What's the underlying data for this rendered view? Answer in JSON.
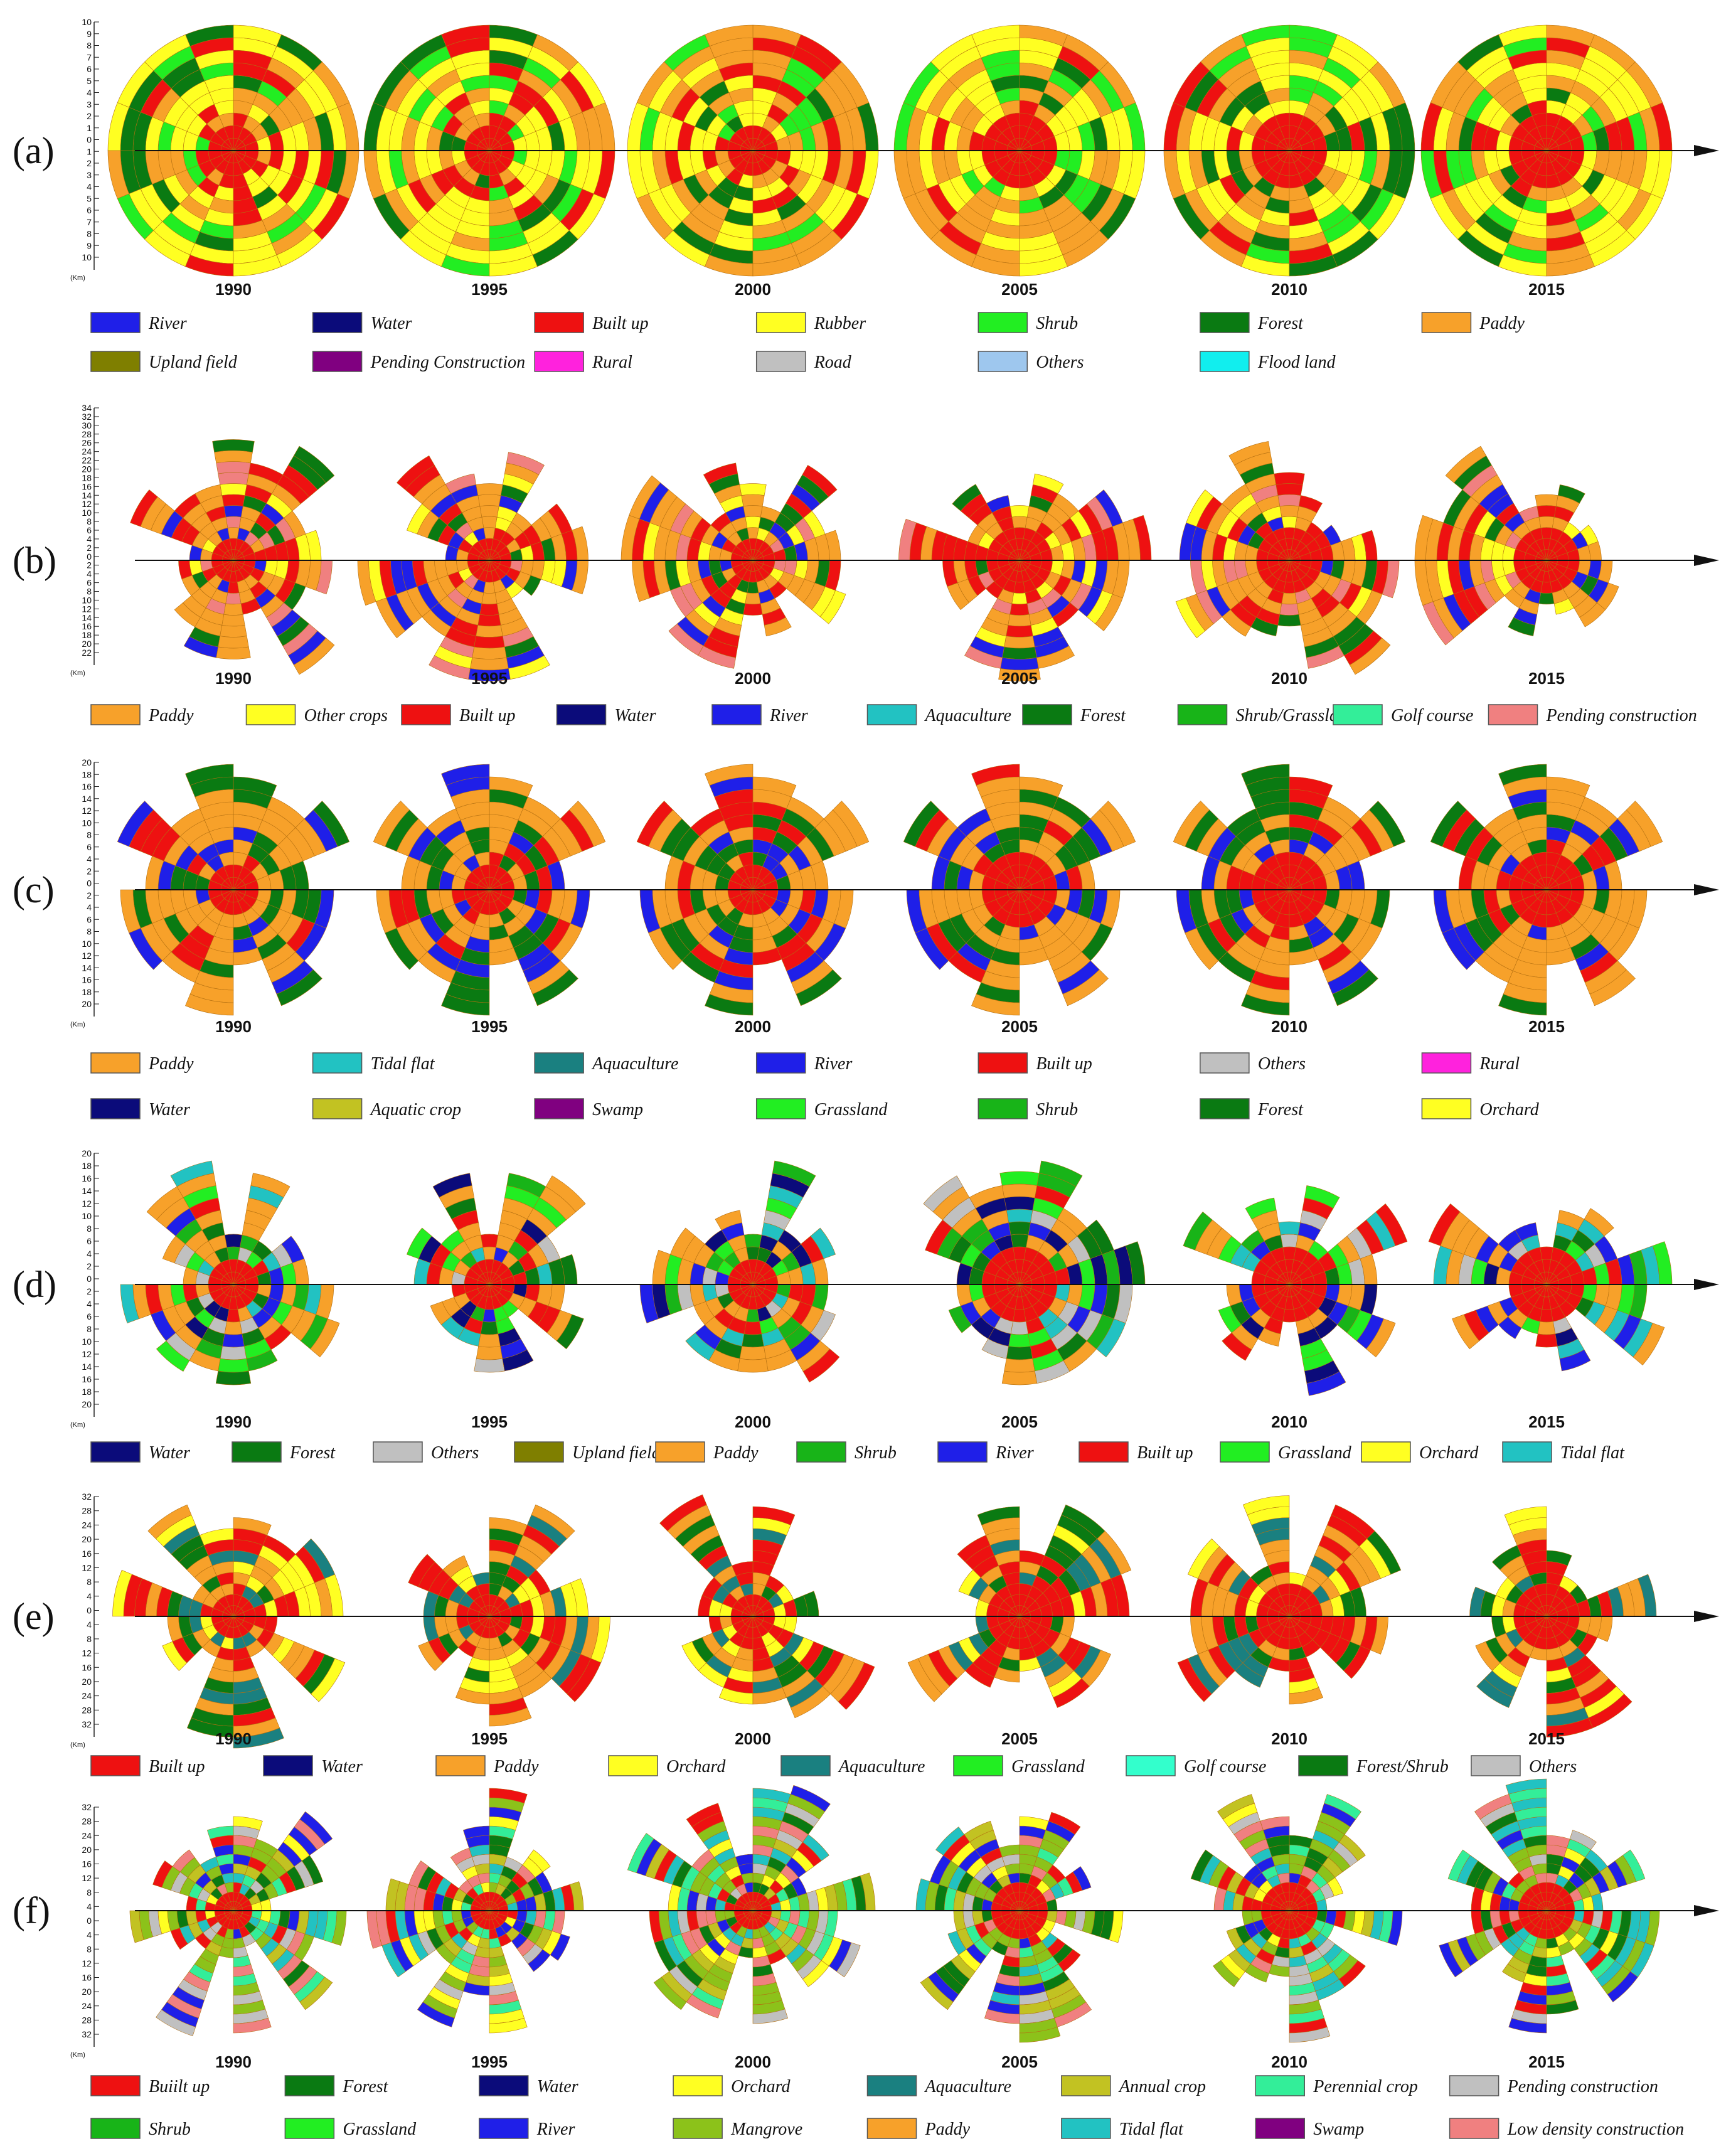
{
  "figure": {
    "axis_unit": "(Km)",
    "years": [
      "1990",
      "1995",
      "2000",
      "2005",
      "2010",
      "2015"
    ]
  },
  "chart_data": [
    {
      "type": "other",
      "panel": "(a)",
      "ticks_up": [
        "10",
        "9",
        "8",
        "7",
        "6",
        "5",
        "4",
        "3",
        "2",
        "1",
        "0"
      ],
      "ticks_down": [
        "1",
        "2",
        "3",
        "4",
        "5",
        "6",
        "7",
        "8",
        "9",
        "10"
      ],
      "categories": [
        "1990",
        "1995",
        "2000",
        "2005",
        "2010",
        "2015"
      ],
      "legend_rows": [
        [
          {
            "label": "River",
            "color": "#1f1fe8"
          },
          {
            "label": "Water",
            "color": "#0b0b7a"
          },
          {
            "label": "Built up",
            "color": "#ee1111"
          },
          {
            "label": "Rubber",
            "color": "#ffff22"
          },
          {
            "label": "Shrub",
            "color": "#22ee22"
          },
          {
            "label": "Forest",
            "color": "#0a7a12"
          },
          {
            "label": "Paddy",
            "color": "#f7a12a"
          }
        ],
        [
          {
            "label": "Upland field",
            "color": "#7f7f00"
          },
          {
            "label": "Pending Construction",
            "color": "#800080"
          },
          {
            "label": "Rural",
            "color": "#ff22dd"
          },
          {
            "label": "Road",
            "color": "#c0c0c0"
          },
          {
            "label": "Others",
            "color": "#9ec7ee"
          },
          {
            "label": "Flood land",
            "color": "#11eeee"
          }
        ]
      ]
    },
    {
      "type": "other",
      "panel": "(b)",
      "ticks_up": [
        "34",
        "32",
        "30",
        "28",
        "26",
        "24",
        "22",
        "20",
        "18",
        "16",
        "14",
        "12",
        "10",
        "8",
        "6",
        "4",
        "2",
        "0"
      ],
      "ticks_down": [
        "2",
        "4",
        "6",
        "8",
        "10",
        "12",
        "14",
        "16",
        "18",
        "20",
        "22"
      ],
      "categories": [
        "1990",
        "1995",
        "2000",
        "2005",
        "2010",
        "2015"
      ],
      "legend_rows": [
        [
          {
            "label": "Paddy",
            "color": "#f7a12a"
          },
          {
            "label": "Other crops",
            "color": "#ffff22"
          },
          {
            "label": "Built up",
            "color": "#ee1111"
          },
          {
            "label": "Water",
            "color": "#0b0b7a"
          },
          {
            "label": "River",
            "color": "#1f1fe8"
          },
          {
            "label": "Aquaculture",
            "color": "#22c2c2"
          },
          {
            "label": "Forest",
            "color": "#0a7a12"
          },
          {
            "label": "Shrub/Grassland",
            "color": "#18b418"
          },
          {
            "label": "Golf course",
            "color": "#33ee99"
          },
          {
            "label": "Pending construction",
            "color": "#f08080"
          }
        ]
      ]
    },
    {
      "type": "other",
      "panel": "(c)",
      "ticks_up": [
        "20",
        "18",
        "16",
        "14",
        "12",
        "10",
        "8",
        "6",
        "4",
        "2",
        "0"
      ],
      "ticks_down": [
        "2",
        "4",
        "6",
        "8",
        "10",
        "12",
        "14",
        "16",
        "18",
        "20"
      ],
      "categories": [
        "1990",
        "1995",
        "2000",
        "2005",
        "2010",
        "2015"
      ],
      "legend_rows": [
        [
          {
            "label": "Paddy",
            "color": "#f7a12a"
          },
          {
            "label": "Tidal flat",
            "color": "#22c2c2"
          },
          {
            "label": "Aquaculture",
            "color": "#1a8080"
          },
          {
            "label": "River",
            "color": "#1f1fe8"
          },
          {
            "label": "Built up",
            "color": "#ee1111"
          },
          {
            "label": "Others",
            "color": "#c0c0c0"
          },
          {
            "label": "Rural",
            "color": "#ff22dd"
          }
        ],
        [
          {
            "label": "Water",
            "color": "#0b0b7a"
          },
          {
            "label": "Aquatic crop",
            "color": "#c2c222"
          },
          {
            "label": "Swamp",
            "color": "#800080"
          },
          {
            "label": "Grassland",
            "color": "#22ee22"
          },
          {
            "label": "Shrub",
            "color": "#18b418"
          },
          {
            "label": "Forest",
            "color": "#0a7a12"
          },
          {
            "label": "Orchard",
            "color": "#ffff22"
          }
        ]
      ]
    },
    {
      "type": "other",
      "panel": "(d)",
      "ticks_up": [
        "20",
        "18",
        "16",
        "14",
        "12",
        "10",
        "8",
        "6",
        "4",
        "2",
        "0"
      ],
      "ticks_down": [
        "2",
        "4",
        "6",
        "8",
        "10",
        "12",
        "14",
        "16",
        "18",
        "20"
      ],
      "categories": [
        "1990",
        "1995",
        "2000",
        "2005",
        "2010",
        "2015"
      ],
      "legend_rows": [
        [
          {
            "label": "Water",
            "color": "#0b0b7a"
          },
          {
            "label": "Forest",
            "color": "#0a7a12"
          },
          {
            "label": "Others",
            "color": "#c0c0c0"
          },
          {
            "label": "Upland field",
            "color": "#7f7f00"
          },
          {
            "label": "Paddy",
            "color": "#f7a12a"
          },
          {
            "label": "Shrub",
            "color": "#18b418"
          },
          {
            "label": "River",
            "color": "#1f1fe8"
          },
          {
            "label": "Built up",
            "color": "#ee1111"
          },
          {
            "label": "Grassland",
            "color": "#22ee22"
          },
          {
            "label": "Orchard",
            "color": "#ffff22"
          },
          {
            "label": "Tidal flat",
            "color": "#22c2c2"
          }
        ]
      ]
    },
    {
      "type": "other",
      "panel": "(e)",
      "ticks_up": [
        "32",
        "28",
        "24",
        "20",
        "16",
        "12",
        "8",
        "4",
        "0"
      ],
      "ticks_down": [
        "4",
        "8",
        "12",
        "16",
        "20",
        "24",
        "28",
        "32"
      ],
      "categories": [
        "1990",
        "1995",
        "2000",
        "2005",
        "2010",
        "2015"
      ],
      "legend_rows": [
        [
          {
            "label": "Built up",
            "color": "#ee1111"
          },
          {
            "label": "Water",
            "color": "#0b0b7a"
          },
          {
            "label": "Paddy",
            "color": "#f7a12a"
          },
          {
            "label": "Orchard",
            "color": "#ffff22"
          },
          {
            "label": "Aquaculture",
            "color": "#1a8080"
          },
          {
            "label": "Grassland",
            "color": "#22ee22"
          },
          {
            "label": "Golf course",
            "color": "#33ffcc"
          },
          {
            "label": "Forest/Shrub",
            "color": "#0a7a12"
          },
          {
            "label": "Others",
            "color": "#c0c0c0"
          }
        ]
      ]
    },
    {
      "type": "other",
      "panel": "(f)",
      "ticks_up": [
        "32",
        "28",
        "24",
        "20",
        "16",
        "12",
        "8",
        "4",
        "0"
      ],
      "ticks_down": [
        "4",
        "8",
        "12",
        "16",
        "20",
        "24",
        "28",
        "32"
      ],
      "categories": [
        "1990",
        "1995",
        "2000",
        "2005",
        "2010",
        "2015"
      ],
      "legend_rows": [
        [
          {
            "label": "Buiilt up",
            "color": "#ee1111"
          },
          {
            "label": "Forest",
            "color": "#0a7a12"
          },
          {
            "label": "Water",
            "color": "#0b0b7a"
          },
          {
            "label": "Orchard",
            "color": "#ffff22"
          },
          {
            "label": "Aquaculture",
            "color": "#1a8080"
          },
          {
            "label": "Annual crop",
            "color": "#c2c222"
          },
          {
            "label": "Perennial crop",
            "color": "#33ee99"
          },
          {
            "label": "Pending construction",
            "color": "#c0c0c0"
          }
        ],
        [
          {
            "label": "Shrub",
            "color": "#18b418"
          },
          {
            "label": "Grassland",
            "color": "#22ee22"
          },
          {
            "label": "River",
            "color": "#1f1fe8"
          },
          {
            "label": "Mangrove",
            "color": "#8cc21a"
          },
          {
            "label": "Paddy",
            "color": "#f7a12a"
          },
          {
            "label": "Tidal flat",
            "color": "#22c2c2"
          },
          {
            "label": "Swamp",
            "color": "#800080"
          },
          {
            "label": "Low density construction",
            "color": "#f08080"
          }
        ]
      ]
    }
  ]
}
